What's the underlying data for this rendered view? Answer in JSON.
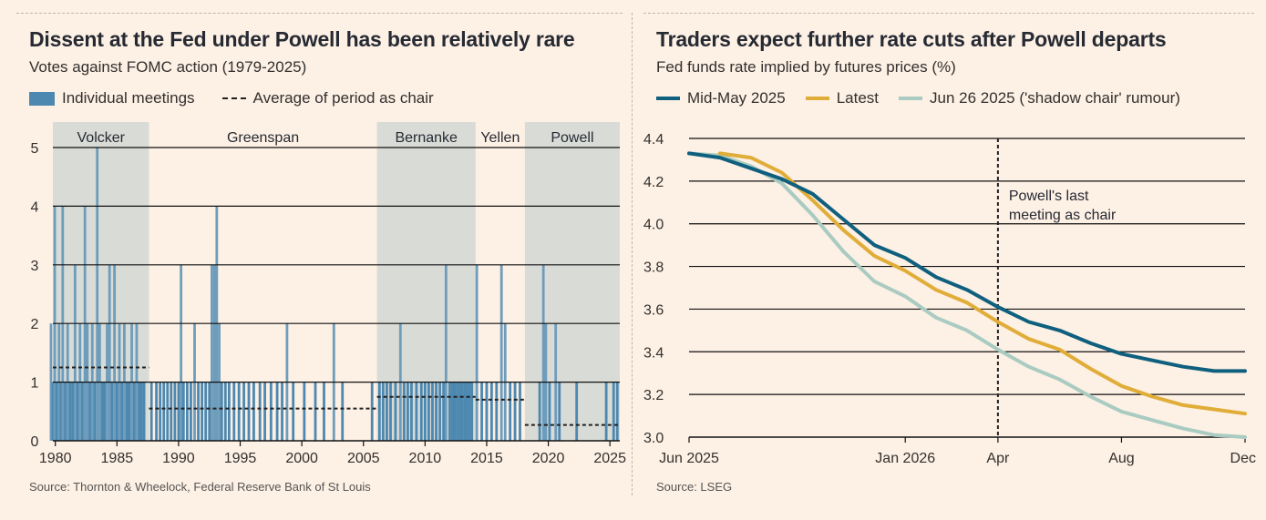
{
  "colors": {
    "background": "#fdf0e4",
    "shade": "#d9dbd6",
    "bar": "#6e9dbc",
    "bar_dense": "#4d88b0",
    "mid_may": "#0f5f7e",
    "latest": "#e0ad38",
    "jun26": "#a9cbc1",
    "grid": "#111111"
  },
  "left": {
    "title": "Dissent at the Fed under Powell has been relatively rare",
    "subtitle": "Votes against FOMC action (1979-2025)",
    "legend": {
      "bars": "Individual meetings",
      "average": "Average of period as chair"
    },
    "source": "Source: Thornton & Wheelock, Federal Reserve Bank of St Louis"
  },
  "right": {
    "title": "Traders expect further rate cuts after Powell departs",
    "subtitle": "Fed funds rate implied by futures prices (%)",
    "source": "Source: LSEG",
    "annotation": [
      "Powell's last",
      "meeting as chair"
    ]
  },
  "chart_data": [
    {
      "type": "bar",
      "title": "Dissent at the Fed under Powell has been relatively rare",
      "subtitle": "Votes against FOMC action (1979-2025)",
      "ylim": [
        0,
        5
      ],
      "yticks": [
        0,
        1,
        2,
        3,
        4,
        5
      ],
      "xlim": [
        1979.8,
        2025.8
      ],
      "xticks": [
        1980,
        1985,
        1990,
        1995,
        2000,
        2005,
        2010,
        2015,
        2020,
        2025
      ],
      "eras": [
        {
          "name": "Volcker",
          "start": 1979.6,
          "end": 1987.6,
          "shaded": true
        },
        {
          "name": "Greenspan",
          "start": 1987.6,
          "end": 2006.1,
          "shaded": false
        },
        {
          "name": "Bernanke",
          "start": 2006.1,
          "end": 2014.1,
          "shaded": true
        },
        {
          "name": "Yellen",
          "start": 2014.1,
          "end": 2018.1,
          "shaded": false
        },
        {
          "name": "Powell",
          "start": 2018.1,
          "end": 2025.8,
          "shaded": true
        }
      ],
      "series": [
        {
          "name": "Individual meetings",
          "points": [
            [
              1979.65,
              2
            ],
            [
              1979.8,
              1
            ],
            [
              1979.95,
              4
            ],
            [
              1980.1,
              1
            ],
            [
              1980.3,
              2
            ],
            [
              1980.45,
              1
            ],
            [
              1980.6,
              4
            ],
            [
              1980.8,
              1
            ],
            [
              1981.0,
              2
            ],
            [
              1981.2,
              1
            ],
            [
              1981.4,
              1
            ],
            [
              1981.6,
              3
            ],
            [
              1981.8,
              1
            ],
            [
              1982.0,
              2
            ],
            [
              1982.2,
              1
            ],
            [
              1982.4,
              4
            ],
            [
              1982.6,
              2
            ],
            [
              1982.8,
              1
            ],
            [
              1983.0,
              2
            ],
            [
              1983.2,
              1
            ],
            [
              1983.4,
              5
            ],
            [
              1983.6,
              2
            ],
            [
              1983.8,
              1
            ],
            [
              1984.0,
              1
            ],
            [
              1984.2,
              2
            ],
            [
              1984.4,
              3
            ],
            [
              1984.6,
              1
            ],
            [
              1984.8,
              3
            ],
            [
              1985.0,
              1
            ],
            [
              1985.2,
              2
            ],
            [
              1985.4,
              1
            ],
            [
              1985.6,
              2
            ],
            [
              1985.8,
              1
            ],
            [
              1986.0,
              1
            ],
            [
              1986.2,
              2
            ],
            [
              1986.4,
              1
            ],
            [
              1986.6,
              2
            ],
            [
              1986.8,
              1
            ],
            [
              1987.0,
              1
            ],
            [
              1987.2,
              1
            ],
            [
              1987.8,
              1
            ],
            [
              1988.2,
              1
            ],
            [
              1988.5,
              1
            ],
            [
              1988.8,
              1
            ],
            [
              1989.1,
              1
            ],
            [
              1989.4,
              1
            ],
            [
              1989.7,
              1
            ],
            [
              1990.0,
              1
            ],
            [
              1990.2,
              3
            ],
            [
              1990.4,
              1
            ],
            [
              1990.7,
              1
            ],
            [
              1991.0,
              1
            ],
            [
              1991.3,
              2
            ],
            [
              1991.6,
              1
            ],
            [
              1991.9,
              1
            ],
            [
              1992.2,
              1
            ],
            [
              1992.5,
              1
            ],
            [
              1992.7,
              3
            ],
            [
              1992.9,
              3
            ],
            [
              1993.1,
              4
            ],
            [
              1993.3,
              2
            ],
            [
              1993.5,
              1
            ],
            [
              1993.8,
              1
            ],
            [
              1994.1,
              1
            ],
            [
              1994.5,
              1
            ],
            [
              1994.9,
              1
            ],
            [
              1995.3,
              1
            ],
            [
              1995.7,
              1
            ],
            [
              1996.1,
              1
            ],
            [
              1996.6,
              1
            ],
            [
              1997.0,
              1
            ],
            [
              1997.5,
              1
            ],
            [
              1998.0,
              1
            ],
            [
              1998.4,
              1
            ],
            [
              1998.8,
              2
            ],
            [
              1999.3,
              1
            ],
            [
              2000.2,
              1
            ],
            [
              2001.1,
              1
            ],
            [
              2001.8,
              1
            ],
            [
              2002.6,
              2
            ],
            [
              2003.3,
              1
            ],
            [
              2005.7,
              1
            ],
            [
              2006.3,
              1
            ],
            [
              2006.6,
              1
            ],
            [
              2006.9,
              1
            ],
            [
              2007.2,
              1
            ],
            [
              2007.6,
              1
            ],
            [
              2008.0,
              2
            ],
            [
              2008.3,
              1
            ],
            [
              2008.6,
              1
            ],
            [
              2008.9,
              1
            ],
            [
              2009.3,
              1
            ],
            [
              2009.7,
              1
            ],
            [
              2010.0,
              1
            ],
            [
              2010.3,
              1
            ],
            [
              2010.6,
              1
            ],
            [
              2010.9,
              1
            ],
            [
              2011.2,
              1
            ],
            [
              2011.5,
              1
            ],
            [
              2011.7,
              3
            ],
            [
              2012.0,
              1
            ],
            [
              2012.2,
              1
            ],
            [
              2012.4,
              1
            ],
            [
              2012.6,
              1
            ],
            [
              2012.8,
              1
            ],
            [
              2013.0,
              1
            ],
            [
              2013.2,
              1
            ],
            [
              2013.4,
              1
            ],
            [
              2013.6,
              1
            ],
            [
              2013.8,
              1
            ],
            [
              2014.2,
              3
            ],
            [
              2014.6,
              1
            ],
            [
              2015.0,
              1
            ],
            [
              2015.4,
              1
            ],
            [
              2015.8,
              1
            ],
            [
              2016.2,
              3
            ],
            [
              2016.5,
              2
            ],
            [
              2016.9,
              1
            ],
            [
              2017.3,
              1
            ],
            [
              2017.7,
              1
            ],
            [
              2019.3,
              1
            ],
            [
              2019.6,
              3
            ],
            [
              2019.8,
              2
            ],
            [
              2020.1,
              1
            ],
            [
              2020.6,
              2
            ],
            [
              2020.9,
              1
            ],
            [
              2022.3,
              1
            ],
            [
              2024.7,
              1
            ],
            [
              2025.3,
              1
            ],
            [
              2025.6,
              1
            ]
          ]
        },
        {
          "name": "Average of period as chair",
          "segments": [
            {
              "chair": "Volcker",
              "start": 1979.6,
              "end": 1987.6,
              "value": 1.25
            },
            {
              "chair": "Greenspan",
              "start": 1987.6,
              "end": 2006.1,
              "value": 0.55
            },
            {
              "chair": "Bernanke",
              "start": 2006.1,
              "end": 2014.1,
              "value": 0.75
            },
            {
              "chair": "Yellen",
              "start": 2014.1,
              "end": 2018.1,
              "value": 0.7
            },
            {
              "chair": "Powell",
              "start": 2018.1,
              "end": 2025.8,
              "value": 0.27
            }
          ]
        }
      ]
    },
    {
      "type": "line",
      "title": "Traders expect further rate cuts after Powell departs",
      "subtitle": "Fed funds rate implied by futures prices (%)",
      "ylim": [
        3.0,
        4.4
      ],
      "yticks": [
        3.0,
        3.2,
        3.4,
        3.6,
        3.8,
        4.0,
        4.2,
        4.4
      ],
      "xlim": [
        "2025-06",
        "2026-12"
      ],
      "xticks": [
        "Jun 2025",
        "Jan 2026",
        "Apr",
        "Aug",
        "Dec"
      ],
      "xtick_positions": [
        "2025-06",
        "2026-01",
        "2026-04",
        "2026-08",
        "2026-12"
      ],
      "vline": {
        "x": "2026-04",
        "style": "dashed"
      },
      "series": [
        {
          "name": "Mid-May 2025",
          "x": [
            "2025-06",
            "2025-07",
            "2025-08",
            "2025-09",
            "2025-10",
            "2025-11",
            "2025-12",
            "2026-01",
            "2026-02",
            "2026-03",
            "2026-04",
            "2026-05",
            "2026-06",
            "2026-07",
            "2026-08",
            "2026-09",
            "2026-10",
            "2026-11",
            "2026-12"
          ],
          "y": [
            4.33,
            4.31,
            4.26,
            4.21,
            4.14,
            4.02,
            3.9,
            3.84,
            3.75,
            3.69,
            3.61,
            3.54,
            3.5,
            3.44,
            3.39,
            3.36,
            3.33,
            3.31,
            3.31
          ]
        },
        {
          "name": "Latest",
          "x": [
            "2025-07",
            "2025-08",
            "2025-09",
            "2025-10",
            "2025-11",
            "2025-12",
            "2026-01",
            "2026-02",
            "2026-03",
            "2026-04",
            "2026-05",
            "2026-06",
            "2026-07",
            "2026-08",
            "2026-09",
            "2026-10",
            "2026-11",
            "2026-12"
          ],
          "y": [
            4.33,
            4.31,
            4.24,
            4.11,
            3.97,
            3.85,
            3.78,
            3.69,
            3.63,
            3.54,
            3.46,
            3.41,
            3.32,
            3.24,
            3.19,
            3.15,
            3.13,
            3.11
          ]
        },
        {
          "name": "Jun 26 2025 ('shadow chair' rumour)",
          "x": [
            "2025-06",
            "2025-07",
            "2025-08",
            "2025-09",
            "2025-10",
            "2025-11",
            "2025-12",
            "2026-01",
            "2026-02",
            "2026-03",
            "2026-04",
            "2026-05",
            "2026-06",
            "2026-07",
            "2026-08",
            "2026-09",
            "2026-10",
            "2026-11",
            "2026-12"
          ],
          "y": [
            4.33,
            4.32,
            4.27,
            4.19,
            4.04,
            3.87,
            3.73,
            3.66,
            3.56,
            3.5,
            3.41,
            3.33,
            3.27,
            3.19,
            3.12,
            3.08,
            3.04,
            3.01,
            3.0
          ]
        }
      ]
    }
  ]
}
